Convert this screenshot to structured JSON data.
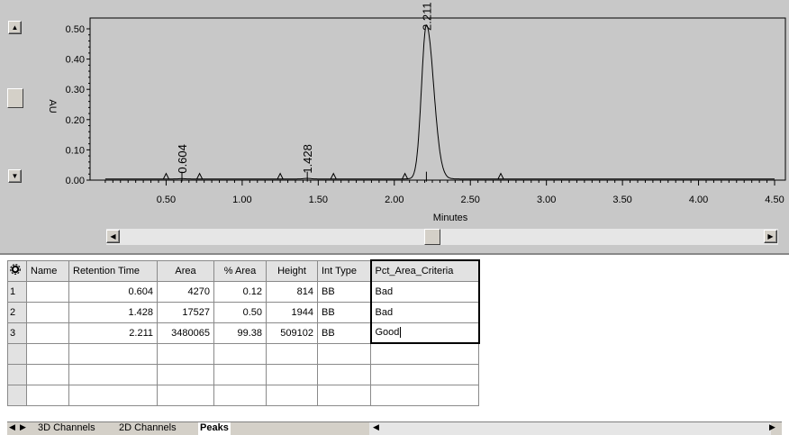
{
  "chart_data": {
    "type": "line",
    "ylabel": "AU",
    "xlabel": "Minutes",
    "ylim": [
      0,
      0.5
    ],
    "xlim": [
      0,
      4.5
    ],
    "x_ticks": [
      "0.50",
      "1.00",
      "1.50",
      "2.00",
      "2.50",
      "3.00",
      "3.50",
      "4.00",
      "4.50"
    ],
    "y_ticks": [
      "0.00",
      "0.10",
      "0.20",
      "0.30",
      "0.40",
      "0.50"
    ],
    "peaks": [
      {
        "label": "0.604",
        "x": 0.604,
        "height": 0.0008
      },
      {
        "label": "1.428",
        "x": 1.428,
        "height": 0.0019
      },
      {
        "label": "2.211",
        "x": 2.211,
        "height": 0.509
      }
    ],
    "integration_marks": [
      0.5,
      0.72,
      1.25,
      1.6,
      2.07,
      2.7
    ]
  },
  "grid": {
    "corner_icon": "table-settings-icon",
    "headers": [
      "Name",
      "Retention Time",
      "Area",
      "% Area",
      "Height",
      "Int Type",
      "Pct_Area_Criteria"
    ],
    "rows": [
      {
        "num": "1",
        "name": "",
        "rt": "0.604",
        "area": "4270",
        "pct": "0.12",
        "height": "814",
        "type": "BB",
        "criteria": "Bad"
      },
      {
        "num": "2",
        "name": "",
        "rt": "1.428",
        "area": "17527",
        "pct": "0.50",
        "height": "1944",
        "type": "BB",
        "criteria": "Bad"
      },
      {
        "num": "3",
        "name": "",
        "rt": "2.211",
        "area": "3480065",
        "pct": "99.38",
        "height": "509102",
        "type": "BB",
        "criteria": "Good"
      }
    ]
  },
  "tabs": [
    "3D Channels",
    "2D Channels",
    "Peaks"
  ],
  "active_tab": "Peaks"
}
